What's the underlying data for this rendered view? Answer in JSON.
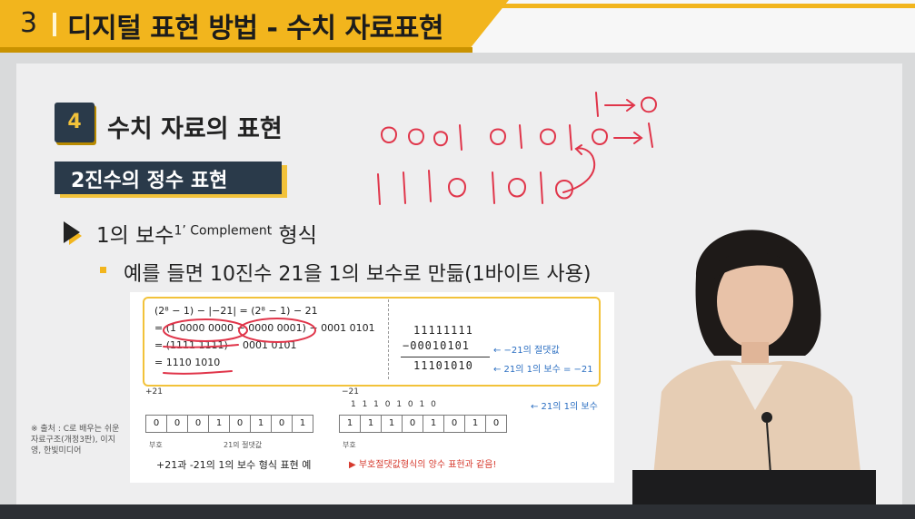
{
  "header": {
    "number": "3",
    "title": "디지털 표현 방법 - 수치 자료표현"
  },
  "section": {
    "number": "4",
    "title": "수치 자료의 표현"
  },
  "subtitle": "2진수의 정수 표현",
  "bullet1": {
    "text": "1의 보수",
    "sup": "1’ Complement",
    "tail": " 형식"
  },
  "bullet2": "예를 들면 10진수 21을 1의 보수로 만듦(1바이트 사용)",
  "figure": {
    "calc_lines": [
      "(2⁸ − 1) − |−21| = (2⁸ − 1) − 21",
      "= (1 0000 0000 − 0000 0001) − 0001 0101",
      "= (1111 1111) − 0001 0101",
      "= 1110 1010"
    ],
    "binary_top": "11111111",
    "binary_mid": "−00010101",
    "binary_bot": "11101010",
    "arrow1": "← −21의 절댓값",
    "arrow2": "← 21의 1의 보수 = −21",
    "plus_label": "+21",
    "minus_label": "−21",
    "top_bits": "1   1   1   0   1   0   1   0",
    "top_note": "← 21의 1의 보수",
    "pos_bits": [
      "0",
      "0",
      "0",
      "1",
      "0",
      "1",
      "0",
      "1"
    ],
    "neg_bits": [
      "1",
      "1",
      "1",
      "0",
      "1",
      "0",
      "1",
      "0"
    ],
    "sign_label": "부호",
    "abs_label": "21의 절댓값",
    "caption": "+21과 -21의 1의 보수 형식 표현 예",
    "note": "▶ 부호절댓값형식의 양수 표현과 같음!"
  },
  "source": "※ 출처 : C로 배우는 쉬운 자료구조(개정3판), 이지영, 한빛미디어",
  "colors": {
    "accent": "#f2b51d",
    "navy": "#2a3a4a",
    "ink": "#e0354a"
  }
}
